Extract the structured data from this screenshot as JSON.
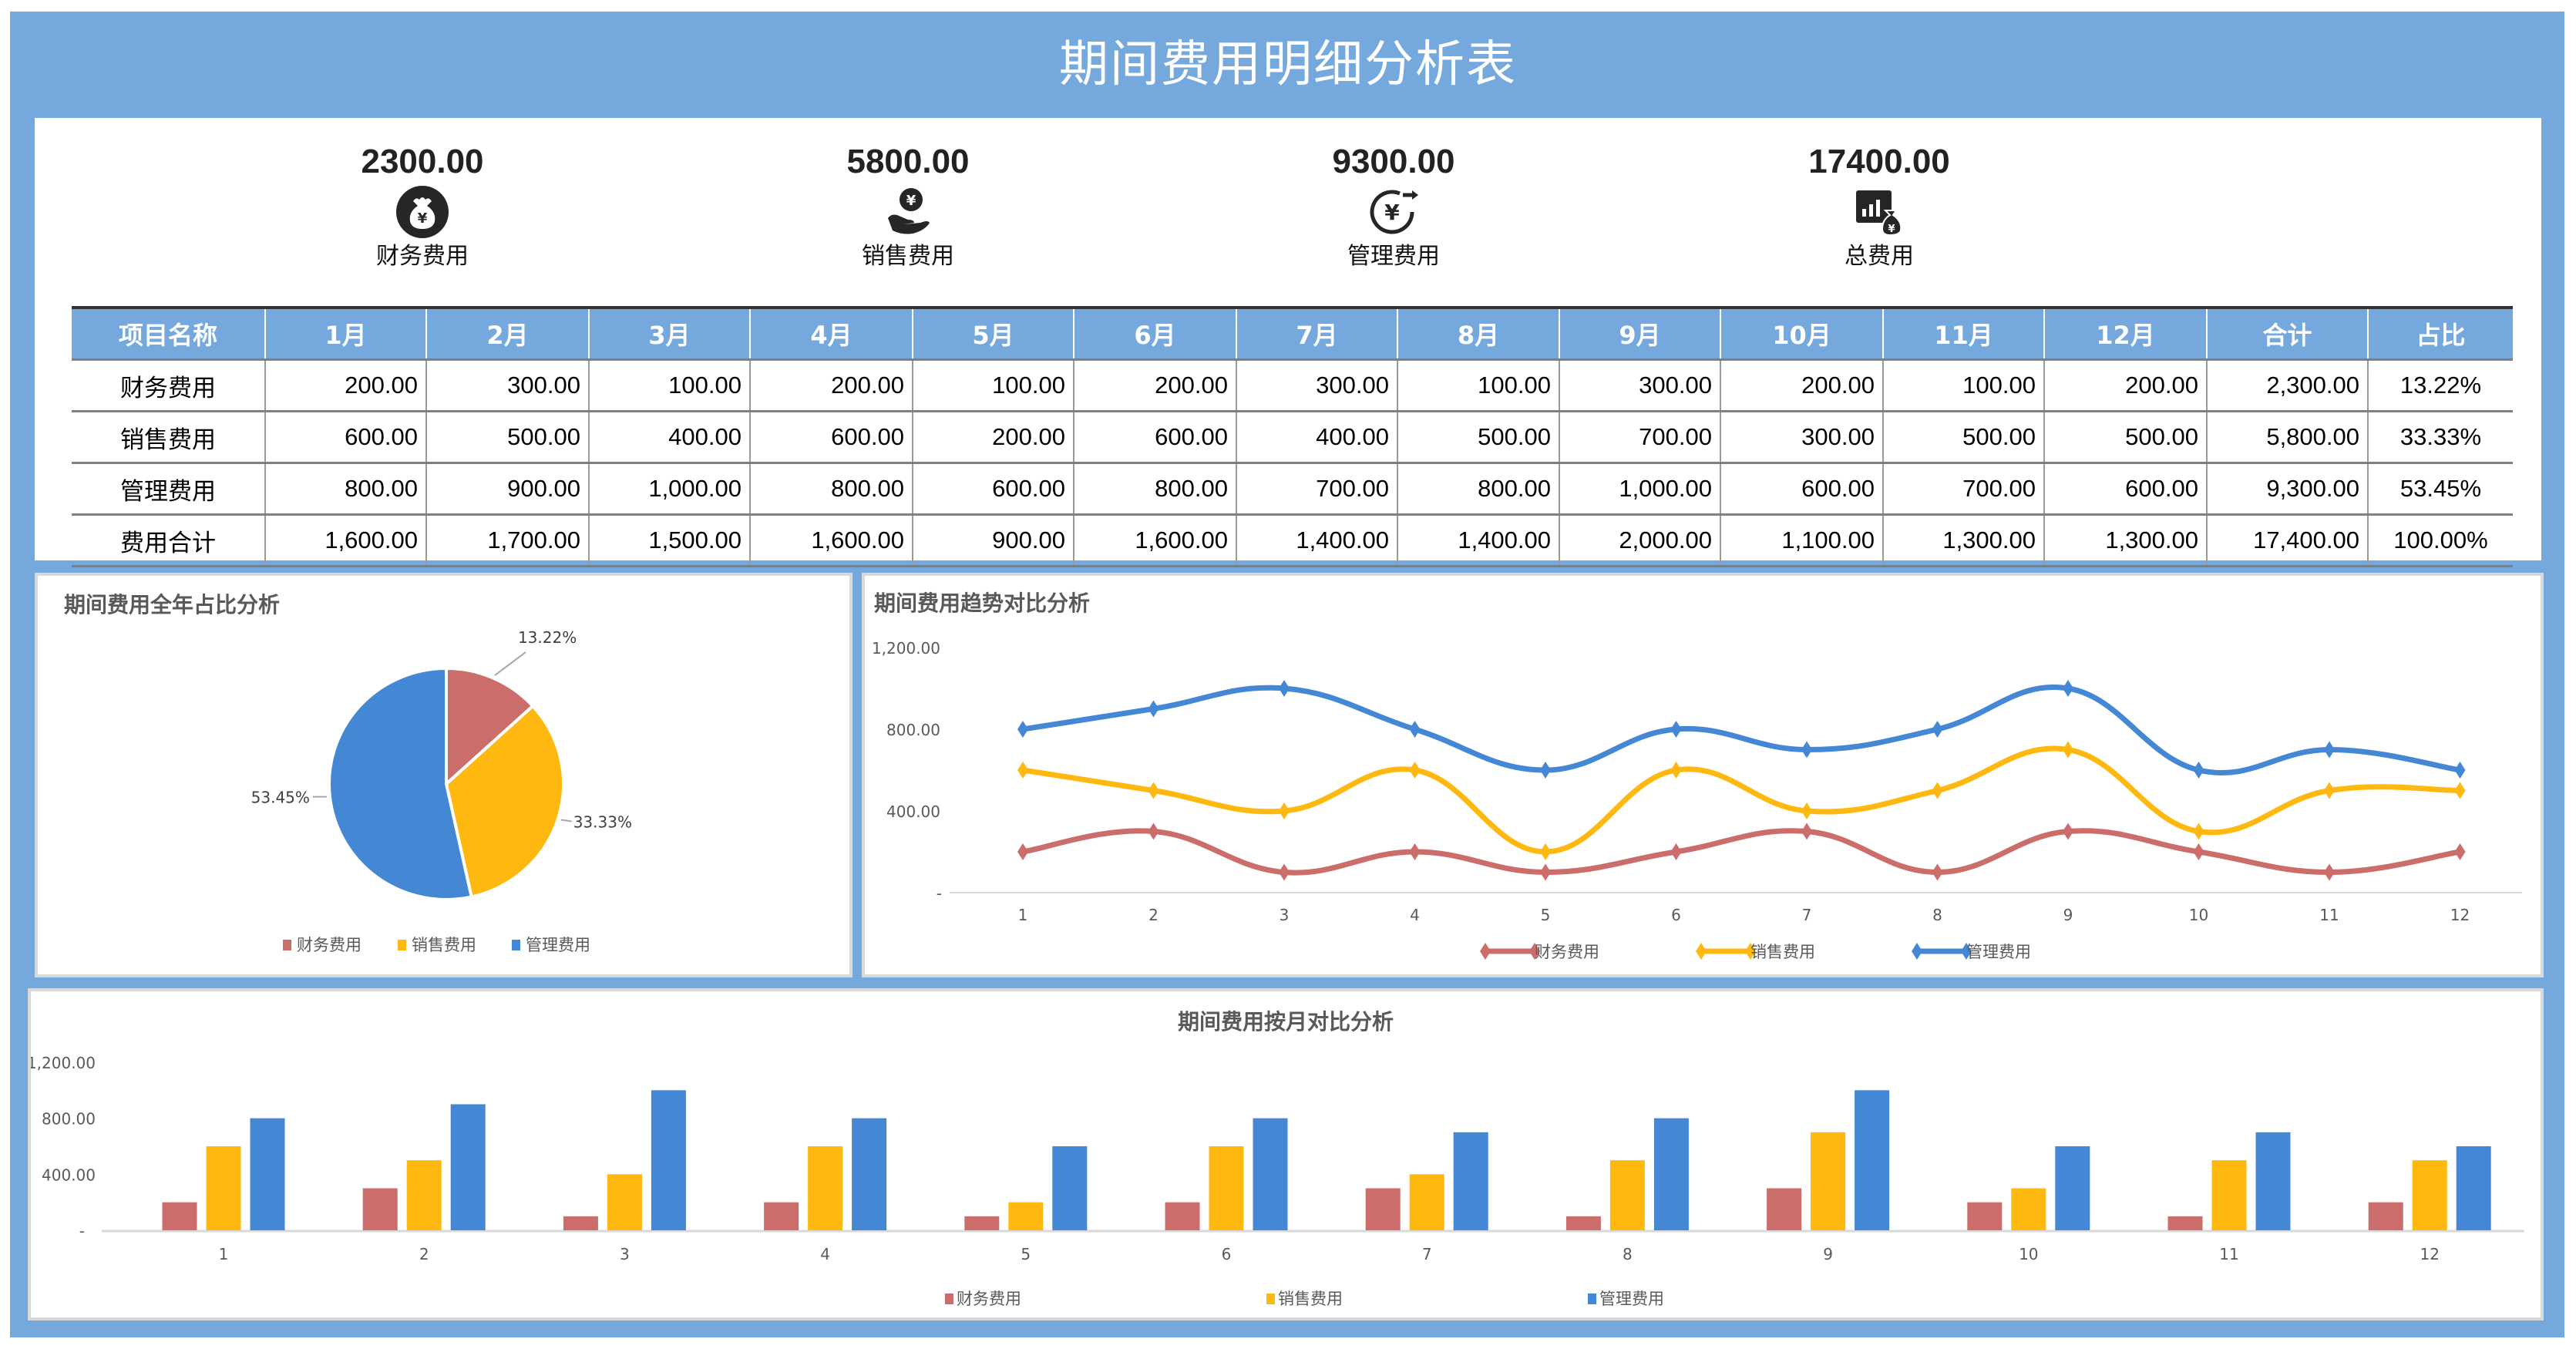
{
  "header": {
    "title": "期间费用明细分析表"
  },
  "colors": {
    "frame": "#75A9DD",
    "finance": "#CB6D6B",
    "sales": "#FFB810",
    "admin": "#4487D4"
  },
  "kpis": [
    {
      "value": "2300.00",
      "label": "财务费用",
      "icon": "money-bag-icon"
    },
    {
      "value": "5800.00",
      "label": "销售费用",
      "icon": "hand-yuan-icon"
    },
    {
      "value": "9300.00",
      "label": "管理费用",
      "icon": "yuan-cycle-icon"
    },
    {
      "value": "17400.00",
      "label": "总费用",
      "icon": "chart-moneybag-icon"
    }
  ],
  "table": {
    "headers": [
      "项目名称",
      "1月",
      "2月",
      "3月",
      "4月",
      "5月",
      "6月",
      "7月",
      "8月",
      "9月",
      "10月",
      "11月",
      "12月",
      "合计",
      "占比"
    ],
    "rows": [
      [
        "财务费用",
        "200.00",
        "300.00",
        "100.00",
        "200.00",
        "100.00",
        "200.00",
        "300.00",
        "100.00",
        "300.00",
        "200.00",
        "100.00",
        "200.00",
        "2,300.00",
        "13.22%"
      ],
      [
        "销售费用",
        "600.00",
        "500.00",
        "400.00",
        "600.00",
        "200.00",
        "600.00",
        "400.00",
        "500.00",
        "700.00",
        "300.00",
        "500.00",
        "500.00",
        "5,800.00",
        "33.33%"
      ],
      [
        "管理费用",
        "800.00",
        "900.00",
        "1,000.00",
        "800.00",
        "600.00",
        "800.00",
        "700.00",
        "800.00",
        "1,000.00",
        "600.00",
        "700.00",
        "600.00",
        "9,300.00",
        "53.45%"
      ],
      [
        "费用合计",
        "1,600.00",
        "1,700.00",
        "1,500.00",
        "1,600.00",
        "900.00",
        "1,600.00",
        "1,400.00",
        "1,400.00",
        "2,000.00",
        "1,100.00",
        "1,300.00",
        "1,300.00",
        "17,400.00",
        "100.00%"
      ]
    ]
  },
  "chart_data": [
    {
      "type": "pie",
      "title": "期间费用全年占比分析",
      "categories": [
        "财务费用",
        "销售费用",
        "管理费用"
      ],
      "values": [
        13.22,
        33.33,
        53.45
      ],
      "labels": [
        "13.22%",
        "33.33%",
        "53.45%"
      ],
      "legend": "bottom"
    },
    {
      "type": "line",
      "title": "期间费用趋势对比分析",
      "x": [
        "1",
        "2",
        "3",
        "4",
        "5",
        "6",
        "7",
        "8",
        "9",
        "10",
        "11",
        "12"
      ],
      "series": [
        {
          "name": "财务费用",
          "values": [
            200,
            300,
            100,
            200,
            100,
            200,
            300,
            100,
            300,
            200,
            100,
            200
          ]
        },
        {
          "name": "销售费用",
          "values": [
            600,
            500,
            400,
            600,
            200,
            600,
            400,
            500,
            700,
            300,
            500,
            500
          ]
        },
        {
          "name": "管理费用",
          "values": [
            800,
            900,
            1000,
            800,
            600,
            800,
            700,
            800,
            1000,
            600,
            700,
            600
          ]
        }
      ],
      "ylim": [
        0,
        1200
      ],
      "yticks": [
        "-",
        "400.00",
        "800.00",
        "1,200.00"
      ],
      "smooth": true,
      "legend": "bottom"
    },
    {
      "type": "bar",
      "title": "期间费用按月对比分析",
      "categories": [
        "1",
        "2",
        "3",
        "4",
        "5",
        "6",
        "7",
        "8",
        "9",
        "10",
        "11",
        "12"
      ],
      "series": [
        {
          "name": "财务费用",
          "values": [
            200,
            300,
            100,
            200,
            100,
            200,
            300,
            100,
            300,
            200,
            100,
            200
          ]
        },
        {
          "name": "销售费用",
          "values": [
            600,
            500,
            400,
            600,
            200,
            600,
            400,
            500,
            700,
            300,
            500,
            500
          ]
        },
        {
          "name": "管理费用",
          "values": [
            800,
            900,
            1000,
            800,
            600,
            800,
            700,
            800,
            1000,
            600,
            700,
            600
          ]
        }
      ],
      "ylim": [
        0,
        1200
      ],
      "yticks": [
        "-",
        "400.00",
        "800.00",
        "1,200.00"
      ],
      "legend": "bottom"
    }
  ]
}
